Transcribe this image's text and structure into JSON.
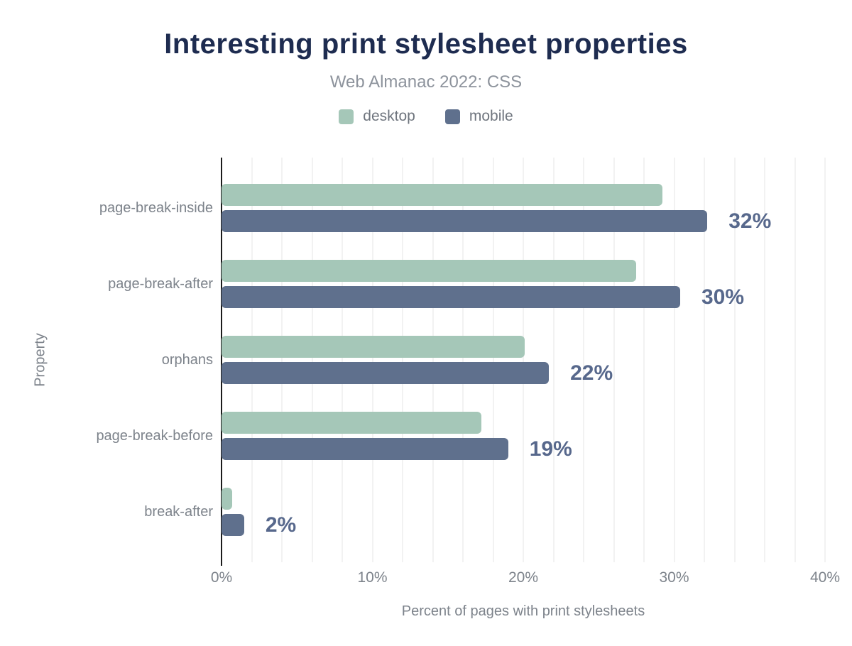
{
  "chart_data": {
    "type": "bar",
    "orientation": "horizontal",
    "title": "Interesting print stylesheet properties",
    "subtitle": "Web Almanac 2022: CSS",
    "xlabel": "Percent of pages with print stylesheets",
    "ylabel": "Property",
    "categories": [
      "page-break-inside",
      "page-break-after",
      "orphans",
      "page-break-before",
      "break-after"
    ],
    "series": [
      {
        "name": "desktop",
        "color": "#a5c7b8",
        "values": [
          29.2,
          27.5,
          20.1,
          17.2,
          0.7
        ]
      },
      {
        "name": "mobile",
        "color": "#5f708d",
        "values": [
          32.2,
          30.4,
          21.7,
          19.0,
          1.5
        ]
      }
    ],
    "value_labels": {
      "labeled_series": "mobile",
      "texts": [
        "32%",
        "30%",
        "22%",
        "19%",
        "2%"
      ],
      "color": "#57688c"
    },
    "xlim": [
      0,
      40
    ],
    "xticks": [
      {
        "v": 0,
        "label": "0%"
      },
      {
        "v": 10,
        "label": "10%"
      },
      {
        "v": 20,
        "label": "20%"
      },
      {
        "v": 30,
        "label": "30%"
      },
      {
        "v": 40,
        "label": "40%"
      }
    ],
    "grid": {
      "show": true,
      "interval_pct": 2,
      "color": "#f2f2f2"
    },
    "legend_position": "top",
    "colors": {
      "title": "#1e2c50",
      "subtitle": "#8d939c",
      "axis_text": "#7d838b",
      "axis_line": "#1c1c1c",
      "background": "#ffffff"
    }
  }
}
